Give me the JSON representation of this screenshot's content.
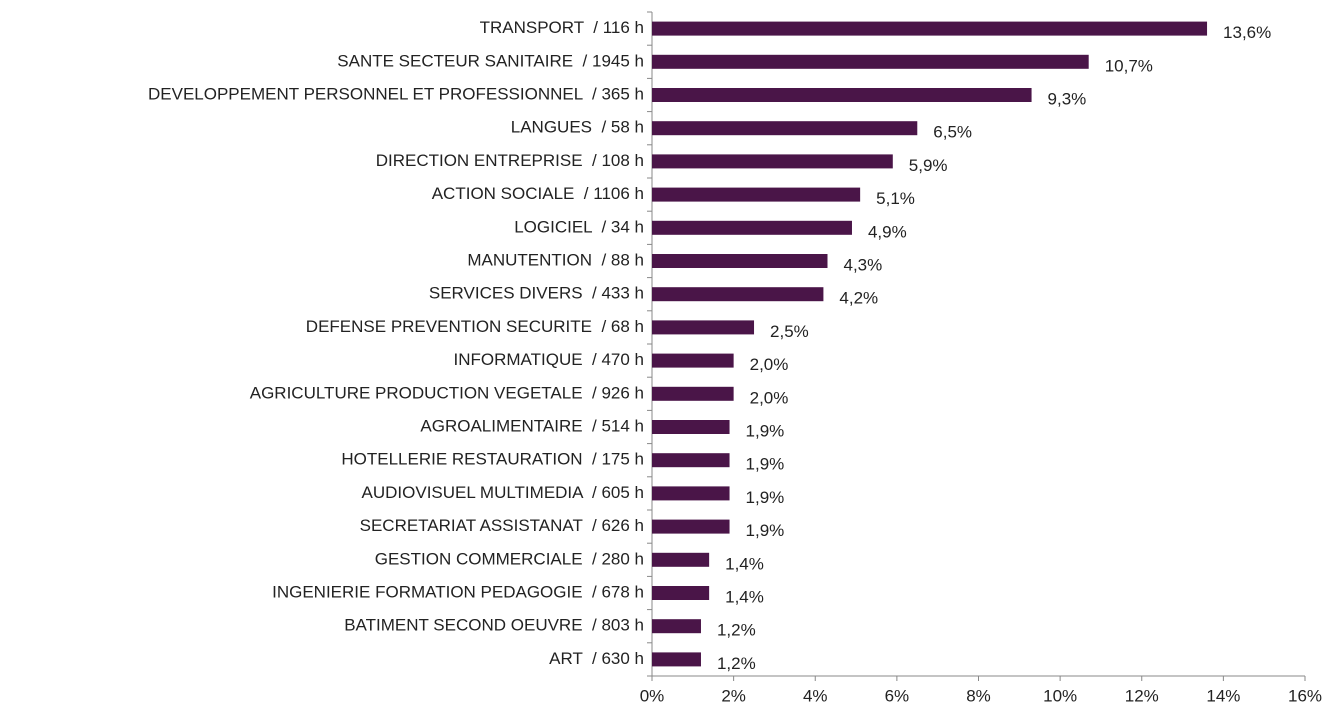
{
  "chart_data": {
    "type": "hbar",
    "categories": [
      "TRANSPORT  / 116 h",
      "SANTE SECTEUR SANITAIRE  / 1945 h",
      "DEVELOPPEMENT PERSONNEL ET PROFESSIONNEL  / 365 h",
      "LANGUES  / 58 h",
      "DIRECTION ENTREPRISE  / 108 h",
      "ACTION SOCIALE  / 1106 h",
      "LOGICIEL  / 34 h",
      "MANUTENTION  / 88 h",
      "SERVICES DIVERS  / 433 h",
      "DEFENSE PREVENTION SECURITE  / 68 h",
      "INFORMATIQUE  / 470 h",
      "AGRICULTURE PRODUCTION VEGETALE  / 926 h",
      "AGROALIMENTAIRE  / 514 h",
      "HOTELLERIE RESTAURATION  / 175 h",
      "AUDIOVISUEL MULTIMEDIA  / 605 h",
      "SECRETARIAT ASSISTANAT  / 626 h",
      "GESTION COMMERCIALE  / 280 h",
      "INGENIERIE FORMATION PEDAGOGIE  / 678 h",
      "BATIMENT SECOND OEUVRE  / 803 h",
      "ART  / 630 h"
    ],
    "values": [
      13.6,
      10.7,
      9.3,
      6.5,
      5.9,
      5.1,
      4.9,
      4.3,
      4.2,
      2.5,
      2.0,
      2.0,
      1.9,
      1.9,
      1.9,
      1.9,
      1.4,
      1.4,
      1.2,
      1.2
    ],
    "value_labels": [
      "13,6%",
      "10,7%",
      "9,3%",
      "6,5%",
      "5,9%",
      "5,1%",
      "4,9%",
      "4,3%",
      "4,2%",
      "2,5%",
      "2,0%",
      "2,0%",
      "1,9%",
      "1,9%",
      "1,9%",
      "1,9%",
      "1,4%",
      "1,4%",
      "1,2%",
      "1,2%"
    ],
    "color": "#4a1548",
    "xlim": [
      0,
      16
    ],
    "xticks": [
      {
        "value": 0,
        "label": "0%"
      },
      {
        "value": 2,
        "label": "2%"
      },
      {
        "value": 4,
        "label": "4%"
      },
      {
        "value": 6,
        "label": "6%"
      },
      {
        "value": 8,
        "label": "8%"
      },
      {
        "value": 10,
        "label": "10%"
      },
      {
        "value": 12,
        "label": "12%"
      },
      {
        "value": 14,
        "label": "14%"
      },
      {
        "value": 16,
        "label": "16%"
      }
    ],
    "grid": false
  }
}
